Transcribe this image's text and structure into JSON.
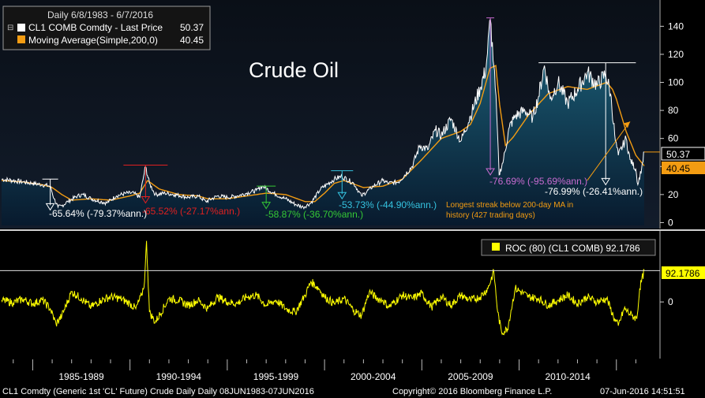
{
  "legend": {
    "range": "Daily 6/8/1983 - 6/7/2016",
    "series1": "CL1 COMB Comdty - Last Price",
    "series1_value": "50.37",
    "series2": "Moving Average(Simple,200,0)",
    "series2_value": "40.45",
    "series1_color": "#ffffff",
    "series2_color": "#f39c12"
  },
  "title": "Crude Oil",
  "annotations": {
    "dd1": "-65.64% (-79.37%ann.)",
    "dd2": "-65.52% (-27.17%ann.)",
    "dd3": "-58.87% (-36.70%ann.)",
    "dd4": "-53.73% (-44.90%ann.)",
    "dd5": "-76.69% (-95.69%ann.)",
    "dd6": "-76.99% (-26.41%ann.)",
    "streak_line1": "Longest streak below 200-day MA in",
    "streak_line2": "history (427 trading days)"
  },
  "price_tags": {
    "last": "50.37",
    "ma": "40.45"
  },
  "roc": {
    "label": "ROC (80) (CL1 COMB) 92.1786",
    "value_tag": "92.1786",
    "color": "#ffff00"
  },
  "footer": {
    "left": "CL1 Comdty (Generic 1st 'CL' Future) Crude Daily  Daily 08JUN1983-07JUN2016",
    "copyright": "Copyright© 2016 Bloomberg Finance L.P.",
    "timestamp": "07-Jun-2016 14:51:51"
  },
  "chart_data": [
    {
      "type": "line",
      "title": "Crude Oil",
      "x_unit": "year",
      "ylim": [
        -2,
        152
      ],
      "yticks": [
        0,
        20,
        40,
        60,
        80,
        100,
        120,
        140
      ],
      "series": [
        {
          "name": "CL1 COMB Comdty - Last Price",
          "x": [
            1983.4,
            1984.0,
            1984.5,
            1985.0,
            1985.5,
            1985.9,
            1986.1,
            1986.3,
            1986.5,
            1986.8,
            1987.3,
            1987.6,
            1988.0,
            1988.5,
            1988.8,
            1989.3,
            1989.8,
            1990.2,
            1990.5,
            1990.7,
            1990.8,
            1991.0,
            1991.3,
            1991.8,
            1992.3,
            1993.0,
            1993.5,
            1993.9,
            1994.5,
            1995.0,
            1995.5,
            1996.0,
            1996.5,
            1996.8,
            1997.5,
            1998.0,
            1998.5,
            1998.9,
            1999.3,
            1999.8,
            2000.5,
            2000.9,
            2001.5,
            2001.9,
            2002.5,
            2003.0,
            2003.3,
            2003.8,
            2004.5,
            2004.9,
            2005.3,
            2005.7,
            2006.0,
            2006.5,
            2007.0,
            2007.5,
            2008.0,
            2008.3,
            2008.52,
            2008.7,
            2008.85,
            2008.97,
            2009.2,
            2009.5,
            2009.8,
            2010.3,
            2010.7,
            2011.0,
            2011.3,
            2011.6,
            2012.0,
            2012.5,
            2013.0,
            2013.5,
            2014.0,
            2014.45,
            2014.7,
            2014.95,
            2015.1,
            2015.5,
            2015.7,
            2016.0,
            2016.1,
            2016.3,
            2016.43
          ],
          "values": [
            31,
            30,
            29,
            28,
            27,
            26,
            17,
            11,
            12,
            15,
            19,
            20,
            17,
            15,
            14,
            19,
            21,
            21,
            18,
            33,
            40,
            28,
            20,
            21,
            20,
            18,
            19,
            15,
            19,
            18,
            19,
            21,
            23,
            26,
            20,
            17,
            13,
            11,
            14,
            24,
            31,
            33,
            28,
            19,
            26,
            30,
            28,
            29,
            40,
            55,
            52,
            66,
            62,
            74,
            58,
            76,
            96,
            110,
            145,
            112,
            77,
            34,
            45,
            68,
            76,
            80,
            75,
            90,
            112,
            88,
            100,
            85,
            95,
            107,
            98,
            106,
            92,
            58,
            48,
            60,
            45,
            38,
            27,
            39,
            50.37
          ]
        },
        {
          "name": "Moving Average(Simple,200,0)",
          "x": [
            1983.4,
            1984.5,
            1985.5,
            1986.0,
            1986.5,
            1987.0,
            1988.0,
            1989.0,
            1990.0,
            1990.5,
            1990.9,
            1991.5,
            1992.5,
            1993.5,
            1994.0,
            1995.0,
            1996.0,
            1997.0,
            1998.0,
            1999.0,
            1999.5,
            2000.0,
            2000.5,
            2001.0,
            2002.0,
            2003.0,
            2004.0,
            2005.0,
            2006.0,
            2007.0,
            2007.5,
            2008.0,
            2008.5,
            2008.8,
            2009.0,
            2009.3,
            2009.7,
            2010.5,
            2011.5,
            2012.5,
            2013.5,
            2014.5,
            2014.8,
            2015.0,
            2015.5,
            2016.0,
            2016.43
          ],
          "values": [
            30,
            29,
            27,
            25,
            20,
            16,
            17,
            16,
            19,
            21,
            30,
            24,
            20,
            19,
            17,
            17,
            19,
            21,
            20,
            15,
            15,
            21,
            28,
            30,
            25,
            26,
            31,
            45,
            60,
            65,
            70,
            85,
            110,
            112,
            84,
            55,
            61,
            77,
            92,
            97,
            95,
            100,
            95,
            88,
            65,
            48,
            40.45
          ]
        }
      ]
    },
    {
      "type": "line",
      "title": "ROC (80) (CL1 COMB)",
      "ylim": [
        -160,
        200
      ],
      "yticks": [
        0
      ],
      "x_tick_labels": [
        "1985-1989",
        "1990-1994",
        "1995-1999",
        "2000-2004",
        "2005-2009",
        "2010-2014"
      ],
      "series": [
        {
          "name": "ROC (80)",
          "x": [
            1983.4,
            1984.0,
            1984.5,
            1985.0,
            1985.5,
            1985.9,
            1986.2,
            1986.5,
            1987.0,
            1987.5,
            1988.0,
            1988.5,
            1989.0,
            1989.5,
            1990.0,
            1990.3,
            1990.6,
            1990.75,
            1990.85,
            1991.0,
            1991.3,
            1992.0,
            1992.5,
            1993.0,
            1993.5,
            1994.0,
            1994.5,
            1995.0,
            1995.5,
            1996.0,
            1996.5,
            1997.0,
            1997.5,
            1998.0,
            1998.5,
            1999.0,
            1999.3,
            1999.7,
            2000.0,
            2000.5,
            2001.0,
            2001.5,
            2001.9,
            2002.3,
            2002.7,
            2003.0,
            2003.3,
            2004.0,
            2004.5,
            2005.0,
            2005.5,
            2006.0,
            2006.5,
            2007.0,
            2007.5,
            2008.0,
            2008.4,
            2008.7,
            2008.9,
            2009.1,
            2009.4,
            2009.8,
            2010.5,
            2011.0,
            2011.5,
            2012.0,
            2012.5,
            2013.0,
            2013.5,
            2014.0,
            2014.5,
            2014.9,
            2015.1,
            2015.4,
            2015.8,
            2016.05,
            2016.2,
            2016.43
          ],
          "values": [
            5,
            -2,
            8,
            -5,
            6,
            -20,
            -65,
            -40,
            30,
            10,
            -15,
            5,
            15,
            10,
            -5,
            -20,
            20,
            60,
            180,
            -30,
            -60,
            10,
            5,
            -10,
            5,
            -20,
            15,
            0,
            -5,
            15,
            20,
            -10,
            5,
            -20,
            -30,
            20,
            60,
            40,
            15,
            -5,
            10,
            -25,
            -40,
            30,
            10,
            5,
            -15,
            20,
            10,
            25,
            -15,
            15,
            -10,
            20,
            5,
            15,
            40,
            90,
            -30,
            -90,
            -80,
            40,
            15,
            10,
            -10,
            5,
            20,
            -5,
            15,
            0,
            10,
            -50,
            -70,
            -20,
            -40,
            -50,
            40,
            92.1786
          ]
        }
      ]
    }
  ]
}
